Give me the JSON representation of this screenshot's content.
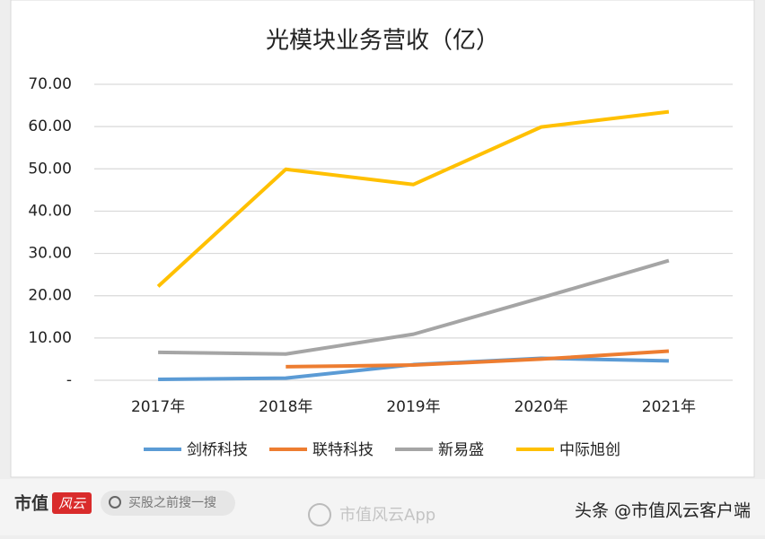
{
  "chart_data": {
    "type": "line",
    "title": "光模块业务营收（亿）",
    "categories": [
      "2017年",
      "2018年",
      "2019年",
      "2020年",
      "2021年"
    ],
    "series": [
      {
        "name": "剑桥科技",
        "color": "#5b9bd5",
        "values": [
          0.2,
          0.5,
          3.7,
          5.2,
          4.6
        ]
      },
      {
        "name": "联特科技",
        "color": "#ed7d31",
        "values": [
          null,
          3.2,
          3.6,
          5.0,
          6.9
        ]
      },
      {
        "name": "新易盛",
        "color": "#a5a5a5",
        "values": [
          6.6,
          6.2,
          10.9,
          19.5,
          28.3
        ]
      },
      {
        "name": "中际旭创",
        "color": "#ffc000",
        "values": [
          22.2,
          49.9,
          46.3,
          59.9,
          63.5
        ]
      }
    ],
    "ylim": [
      0,
      70
    ],
    "yticks": [
      {
        "value": 0,
        "label": "-"
      },
      {
        "value": 10,
        "label": "10.00"
      },
      {
        "value": 20,
        "label": "20.00"
      },
      {
        "value": 30,
        "label": "30.00"
      },
      {
        "value": 40,
        "label": "40.00"
      },
      {
        "value": 50,
        "label": "50.00"
      },
      {
        "value": 60,
        "label": "60.00"
      },
      {
        "value": 70,
        "label": "70.00"
      }
    ],
    "grid": true,
    "legend": "bottom"
  },
  "footer": {
    "logo_text": "市值",
    "logo_badge": "风云",
    "search": "买股之前搜一搜",
    "watermark": "市值风云App",
    "source": "头条 @市值风云客户端"
  }
}
